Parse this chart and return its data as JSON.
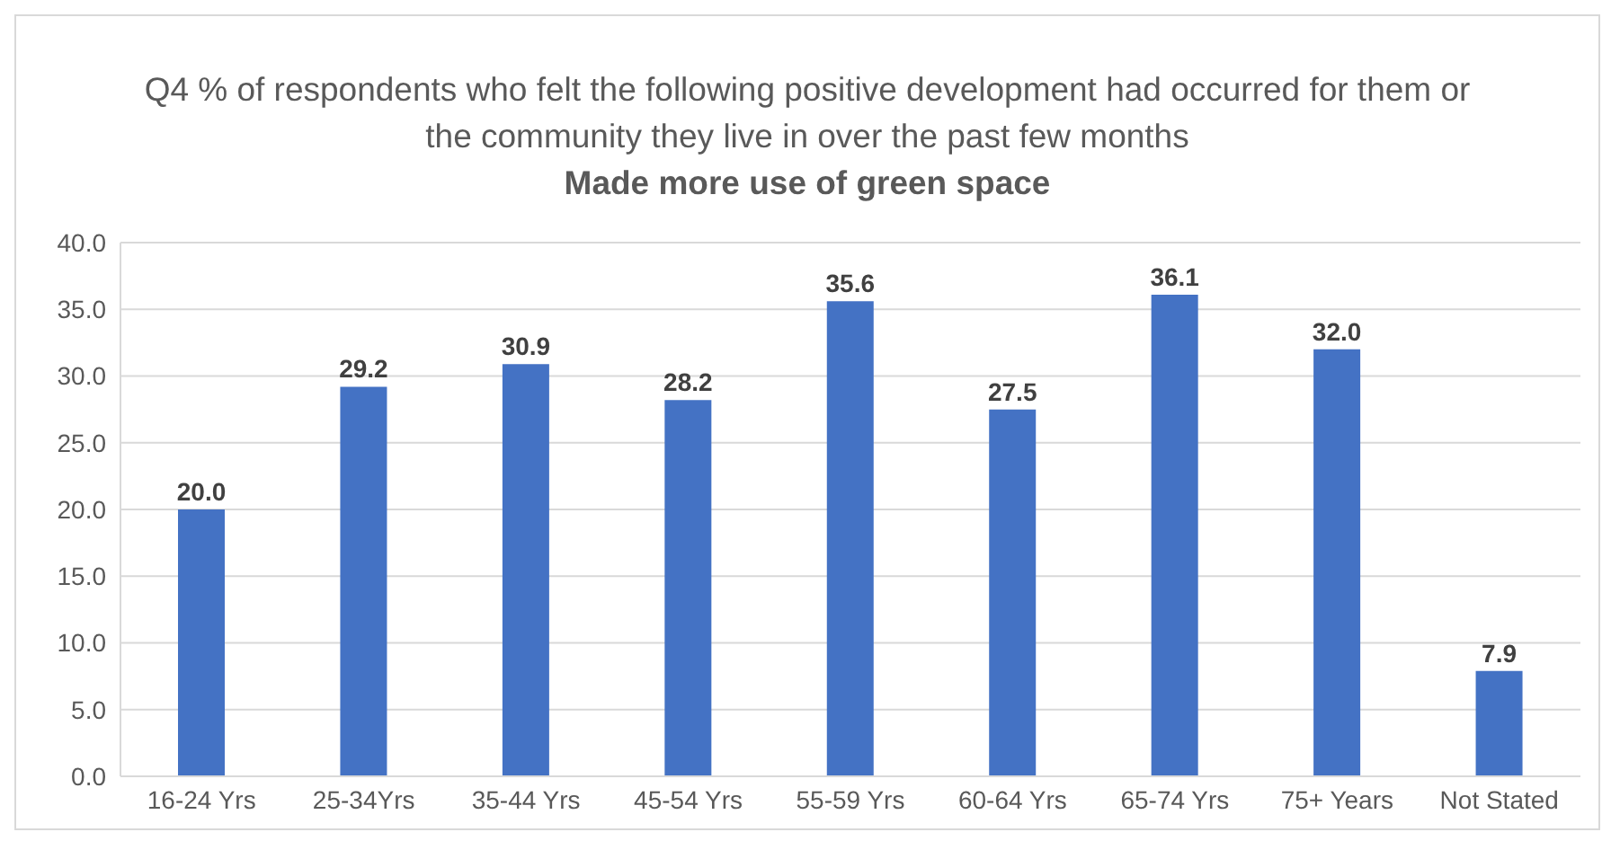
{
  "chart_data": {
    "type": "bar",
    "title": "Q4 % of respondents who felt the following positive development had occurred for them or the community they live in over the past few months",
    "subtitle": "Made more use of green space",
    "categories": [
      "16-24 Yrs",
      "25-34Yrs",
      "35-44 Yrs",
      "45-54 Yrs",
      "55-59 Yrs",
      "60-64 Yrs",
      "65-74 Yrs",
      "75+ Years",
      "Not Stated"
    ],
    "values": [
      20.0,
      29.2,
      30.9,
      28.2,
      35.6,
      27.5,
      36.1,
      32.0,
      7.9
    ],
    "value_labels": [
      "20.0",
      "29.2",
      "30.9",
      "28.2",
      "35.6",
      "27.5",
      "36.1",
      "32.0",
      "7.9"
    ],
    "color": "#4472c4",
    "ylim": [
      0,
      40
    ],
    "yticks": [
      {
        "value": 0,
        "label": "0.0"
      },
      {
        "value": 5,
        "label": "5.0"
      },
      {
        "value": 10,
        "label": "10.0"
      },
      {
        "value": 15,
        "label": "15.0"
      },
      {
        "value": 20,
        "label": "20.0"
      },
      {
        "value": 25,
        "label": "25.0"
      },
      {
        "value": 30,
        "label": "30.0"
      },
      {
        "value": 35,
        "label": "35.0"
      },
      {
        "value": 40,
        "label": "40.0"
      }
    ],
    "grid": "y"
  }
}
